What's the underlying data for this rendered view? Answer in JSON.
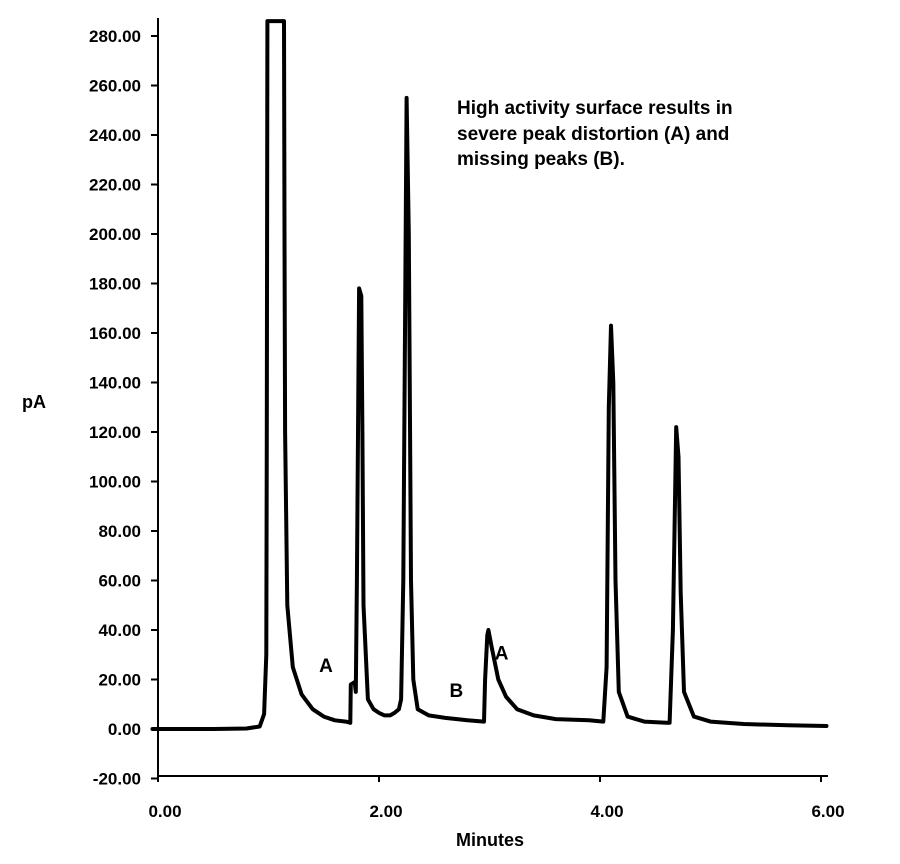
{
  "chart_data": {
    "type": "line",
    "xlabel": "Minutes",
    "ylabel": "pA",
    "xlim": [
      0,
      6.1
    ],
    "ylim": [
      -20,
      287
    ],
    "x_ticks": [
      "0.00",
      "2.00",
      "4.00",
      "6.00"
    ],
    "x_tick_values": [
      0,
      2,
      4,
      6
    ],
    "y_ticks": [
      "-20.00",
      "0.00",
      "20.00",
      "40.00",
      "60.00",
      "80.00",
      "100.00",
      "120.00",
      "140.00",
      "160.00",
      "180.00",
      "200.00",
      "220.00",
      "240.00",
      "260.00",
      "280.00"
    ],
    "y_tick_values": [
      -20,
      0,
      20,
      40,
      60,
      80,
      100,
      120,
      140,
      160,
      180,
      200,
      220,
      240,
      260,
      280
    ],
    "note_lines": [
      "High activity surface results in",
      "severe peak distortion (A) and",
      "missing peaks (B)."
    ],
    "annotations": [
      {
        "text": "A",
        "x": 1.52,
        "y": 23
      },
      {
        "text": "B",
        "x": 2.7,
        "y": 13
      },
      {
        "text": "A",
        "x": 3.11,
        "y": 28
      },
      {
        "text": "A",
        "x": 3.11,
        "y": 28
      }
    ],
    "series": [
      {
        "points": [
          [
            -0.05,
            0
          ],
          [
            0.2,
            0
          ],
          [
            0.5,
            0
          ],
          [
            0.8,
            0.2
          ],
          [
            0.92,
            1
          ],
          [
            0.96,
            6
          ],
          [
            0.98,
            30
          ],
          [
            0.985,
            120
          ],
          [
            0.99,
            286
          ],
          [
            1.14,
            286
          ],
          [
            1.145,
            200
          ],
          [
            1.15,
            120
          ],
          [
            1.17,
            50
          ],
          [
            1.22,
            25
          ],
          [
            1.3,
            14
          ],
          [
            1.4,
            8
          ],
          [
            1.5,
            5
          ],
          [
            1.6,
            3.5
          ],
          [
            1.7,
            3
          ],
          [
            1.74,
            2.5
          ],
          [
            1.745,
            18
          ],
          [
            1.78,
            19
          ],
          [
            1.79,
            15
          ],
          [
            1.8,
            60
          ],
          [
            1.82,
            178
          ],
          [
            1.84,
            175
          ],
          [
            1.85,
            120
          ],
          [
            1.86,
            50
          ],
          [
            1.9,
            12
          ],
          [
            1.95,
            8
          ],
          [
            2.0,
            6.5
          ],
          [
            2.05,
            5.5
          ],
          [
            2.1,
            5.5
          ],
          [
            2.14,
            6.5
          ],
          [
            2.18,
            8
          ],
          [
            2.2,
            12
          ],
          [
            2.22,
            60
          ],
          [
            2.25,
            255
          ],
          [
            2.27,
            200
          ],
          [
            2.29,
            60
          ],
          [
            2.31,
            20
          ],
          [
            2.35,
            8
          ],
          [
            2.45,
            5.5
          ],
          [
            2.6,
            4.5
          ],
          [
            2.8,
            3.5
          ],
          [
            2.95,
            3
          ],
          [
            2.96,
            20
          ],
          [
            2.98,
            38
          ],
          [
            2.99,
            40
          ],
          [
            3.02,
            33
          ],
          [
            3.08,
            20
          ],
          [
            3.15,
            13
          ],
          [
            3.25,
            8
          ],
          [
            3.4,
            5.5
          ],
          [
            3.6,
            4
          ],
          [
            3.9,
            3.5
          ],
          [
            4.03,
            3
          ],
          [
            4.06,
            25
          ],
          [
            4.08,
            130
          ],
          [
            4.1,
            163
          ],
          [
            4.12,
            140
          ],
          [
            4.14,
            60
          ],
          [
            4.17,
            15
          ],
          [
            4.25,
            5
          ],
          [
            4.4,
            3
          ],
          [
            4.6,
            2.5
          ],
          [
            4.63,
            2.5
          ],
          [
            4.66,
            40
          ],
          [
            4.69,
            122
          ],
          [
            4.71,
            110
          ],
          [
            4.73,
            55
          ],
          [
            4.76,
            15
          ],
          [
            4.85,
            5
          ],
          [
            5.0,
            3
          ],
          [
            5.3,
            2
          ],
          [
            5.7,
            1.5
          ],
          [
            6.05,
            1.2
          ]
        ]
      }
    ]
  }
}
